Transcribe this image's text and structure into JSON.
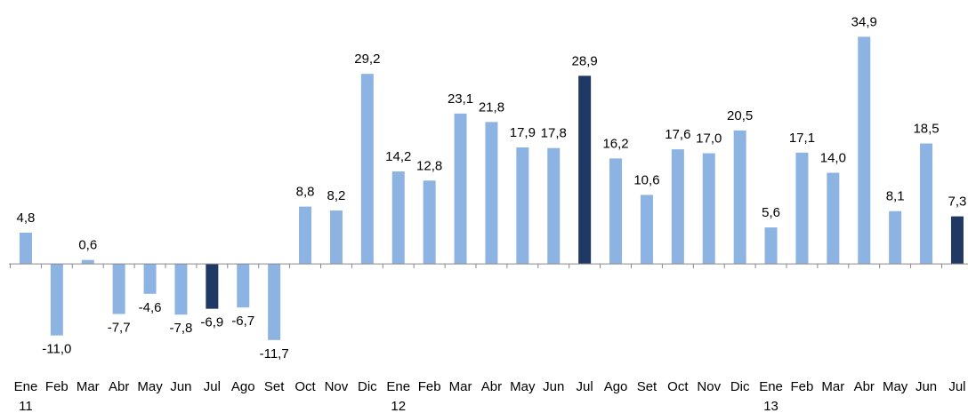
{
  "chart_data": {
    "type": "bar",
    "categories": [
      "Ene",
      "Feb",
      "Mar",
      "Abr",
      "May",
      "Jun",
      "Jul",
      "Ago",
      "Set",
      "Oct",
      "Nov",
      "Dic",
      "Ene",
      "Feb",
      "Mar",
      "Abr",
      "May",
      "Jun",
      "Jul",
      "Ago",
      "Set",
      "Oct",
      "Nov",
      "Dic",
      "Ene",
      "Feb",
      "Mar",
      "Abr",
      "May",
      "Jun",
      "Jul"
    ],
    "year_labels": [
      "11",
      null,
      null,
      null,
      null,
      null,
      null,
      null,
      null,
      null,
      null,
      null,
      "12",
      null,
      null,
      null,
      null,
      null,
      null,
      null,
      null,
      null,
      null,
      null,
      "13",
      null,
      null,
      null,
      null,
      null,
      null
    ],
    "values": [
      4.8,
      -11.0,
      0.6,
      -7.7,
      -4.6,
      -7.8,
      -6.9,
      -6.7,
      -11.7,
      8.8,
      8.2,
      29.2,
      14.2,
      12.8,
      23.1,
      21.8,
      17.9,
      17.8,
      28.9,
      16.2,
      10.6,
      17.6,
      17.0,
      20.5,
      5.6,
      17.1,
      14.0,
      34.9,
      8.1,
      18.5,
      7.3
    ],
    "value_labels": [
      "4,8",
      "-11,0",
      "0,6",
      "-7,7",
      "-4,6",
      "-7,8",
      "-6,9",
      "-6,7",
      "-11,7",
      "8,8",
      "8,2",
      "29,2",
      "14,2",
      "12,8",
      "23,1",
      "21,8",
      "17,9",
      "17,8",
      "28,9",
      "16,2",
      "10,6",
      "17,6",
      "17,0",
      "20,5",
      "5,6",
      "17,1",
      "14,0",
      "34,9",
      "8,1",
      "18,5",
      "7,3"
    ],
    "colors": [
      "#8db3e2",
      "#8db3e2",
      "#8db3e2",
      "#8db3e2",
      "#8db3e2",
      "#8db3e2",
      "#1f3864",
      "#8db3e2",
      "#8db3e2",
      "#8db3e2",
      "#8db3e2",
      "#8db3e2",
      "#8db3e2",
      "#8db3e2",
      "#8db3e2",
      "#8db3e2",
      "#8db3e2",
      "#8db3e2",
      "#1f3864",
      "#8db3e2",
      "#8db3e2",
      "#8db3e2",
      "#8db3e2",
      "#8db3e2",
      "#8db3e2",
      "#8db3e2",
      "#8db3e2",
      "#8db3e2",
      "#8db3e2",
      "#8db3e2",
      "#1f3864"
    ],
    "ylim": [
      -13.5,
      37
    ]
  }
}
